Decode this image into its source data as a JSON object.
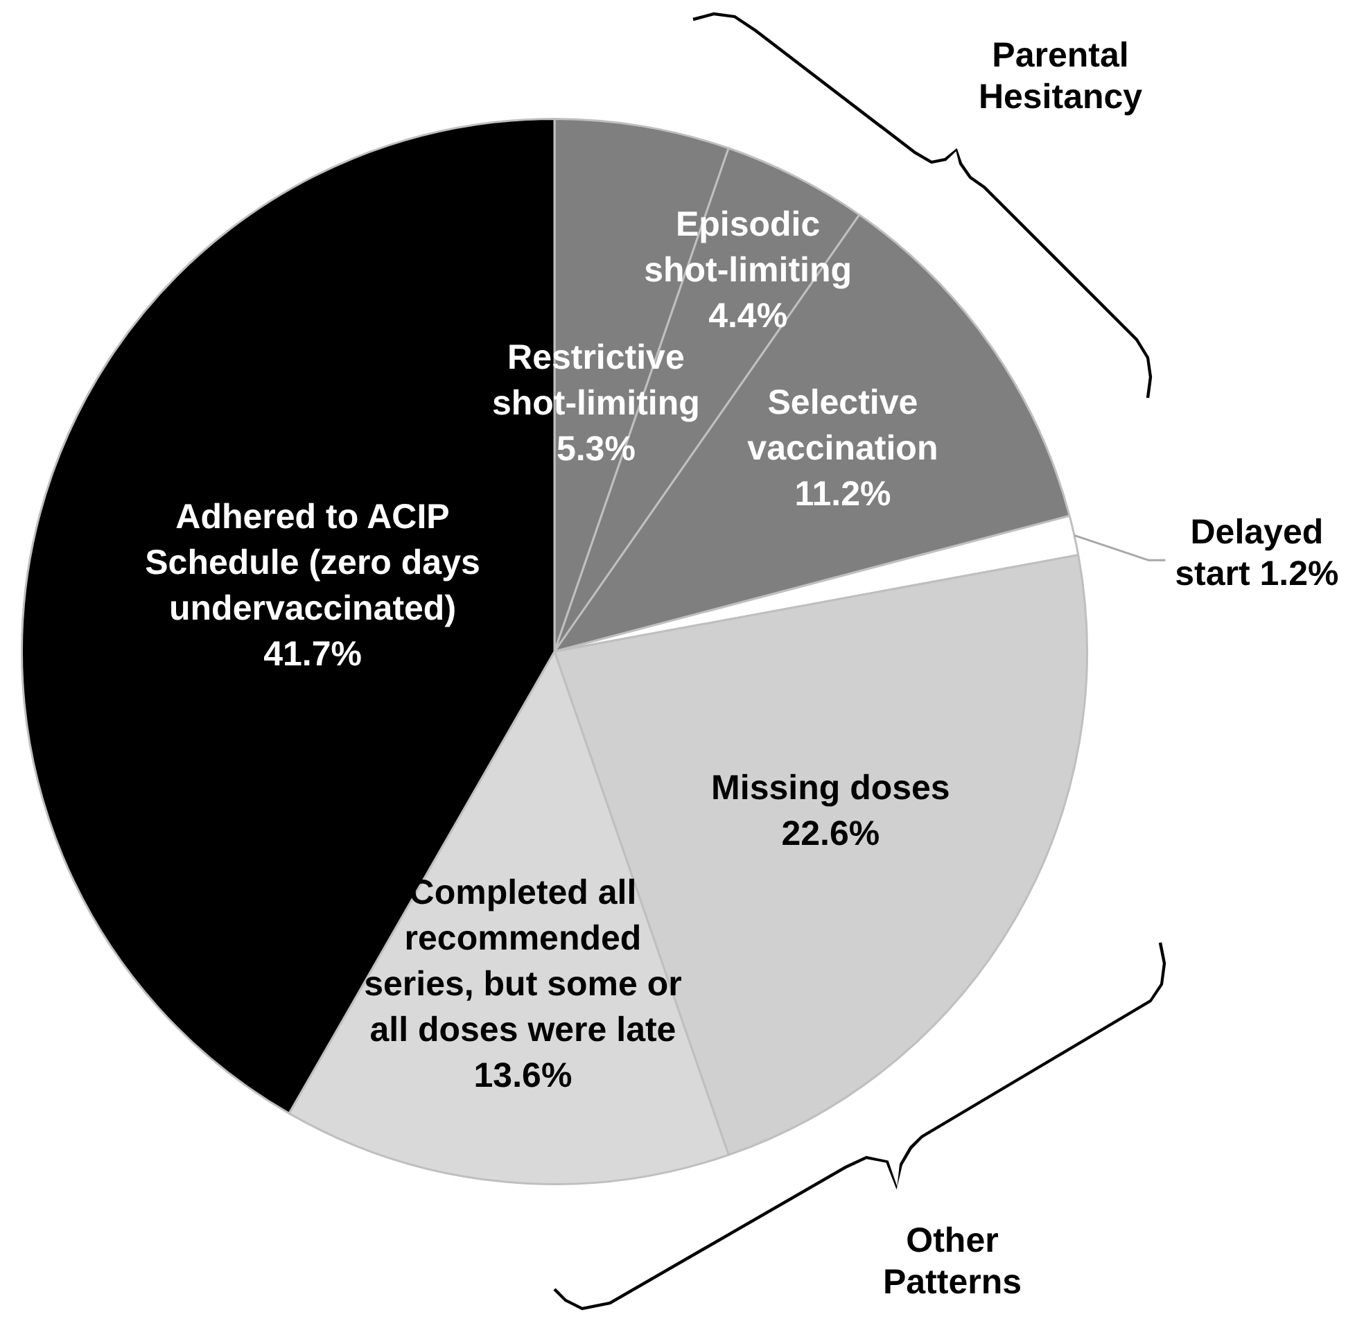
{
  "chart_data": {
    "type": "pie",
    "categories": [
      "Restrictive shot-limiting",
      "Episodic shot-limiting",
      "Selective vaccination",
      "Delayed start",
      "Missing doses",
      "Completed all recommended series, but some or all doses were late",
      "Adhered to ACIP Schedule (zero days undervaccinated)"
    ],
    "values": [
      5.3,
      4.4,
      11.2,
      1.2,
      22.6,
      13.6,
      41.7
    ],
    "value_labels": [
      "5.3%",
      "4.4%",
      "11.2%",
      "1.2%",
      "22.6%",
      "13.6%",
      "41.7%"
    ],
    "colors": [
      "#7f7f7f",
      "#7f7f7f",
      "#7f7f7f",
      "#ffffff",
      "#d0d0d0",
      "#d9d9d9",
      "#000000"
    ],
    "annotations": [
      "Parental Hesitancy",
      "Other Patterns"
    ],
    "legend": false
  }
}
